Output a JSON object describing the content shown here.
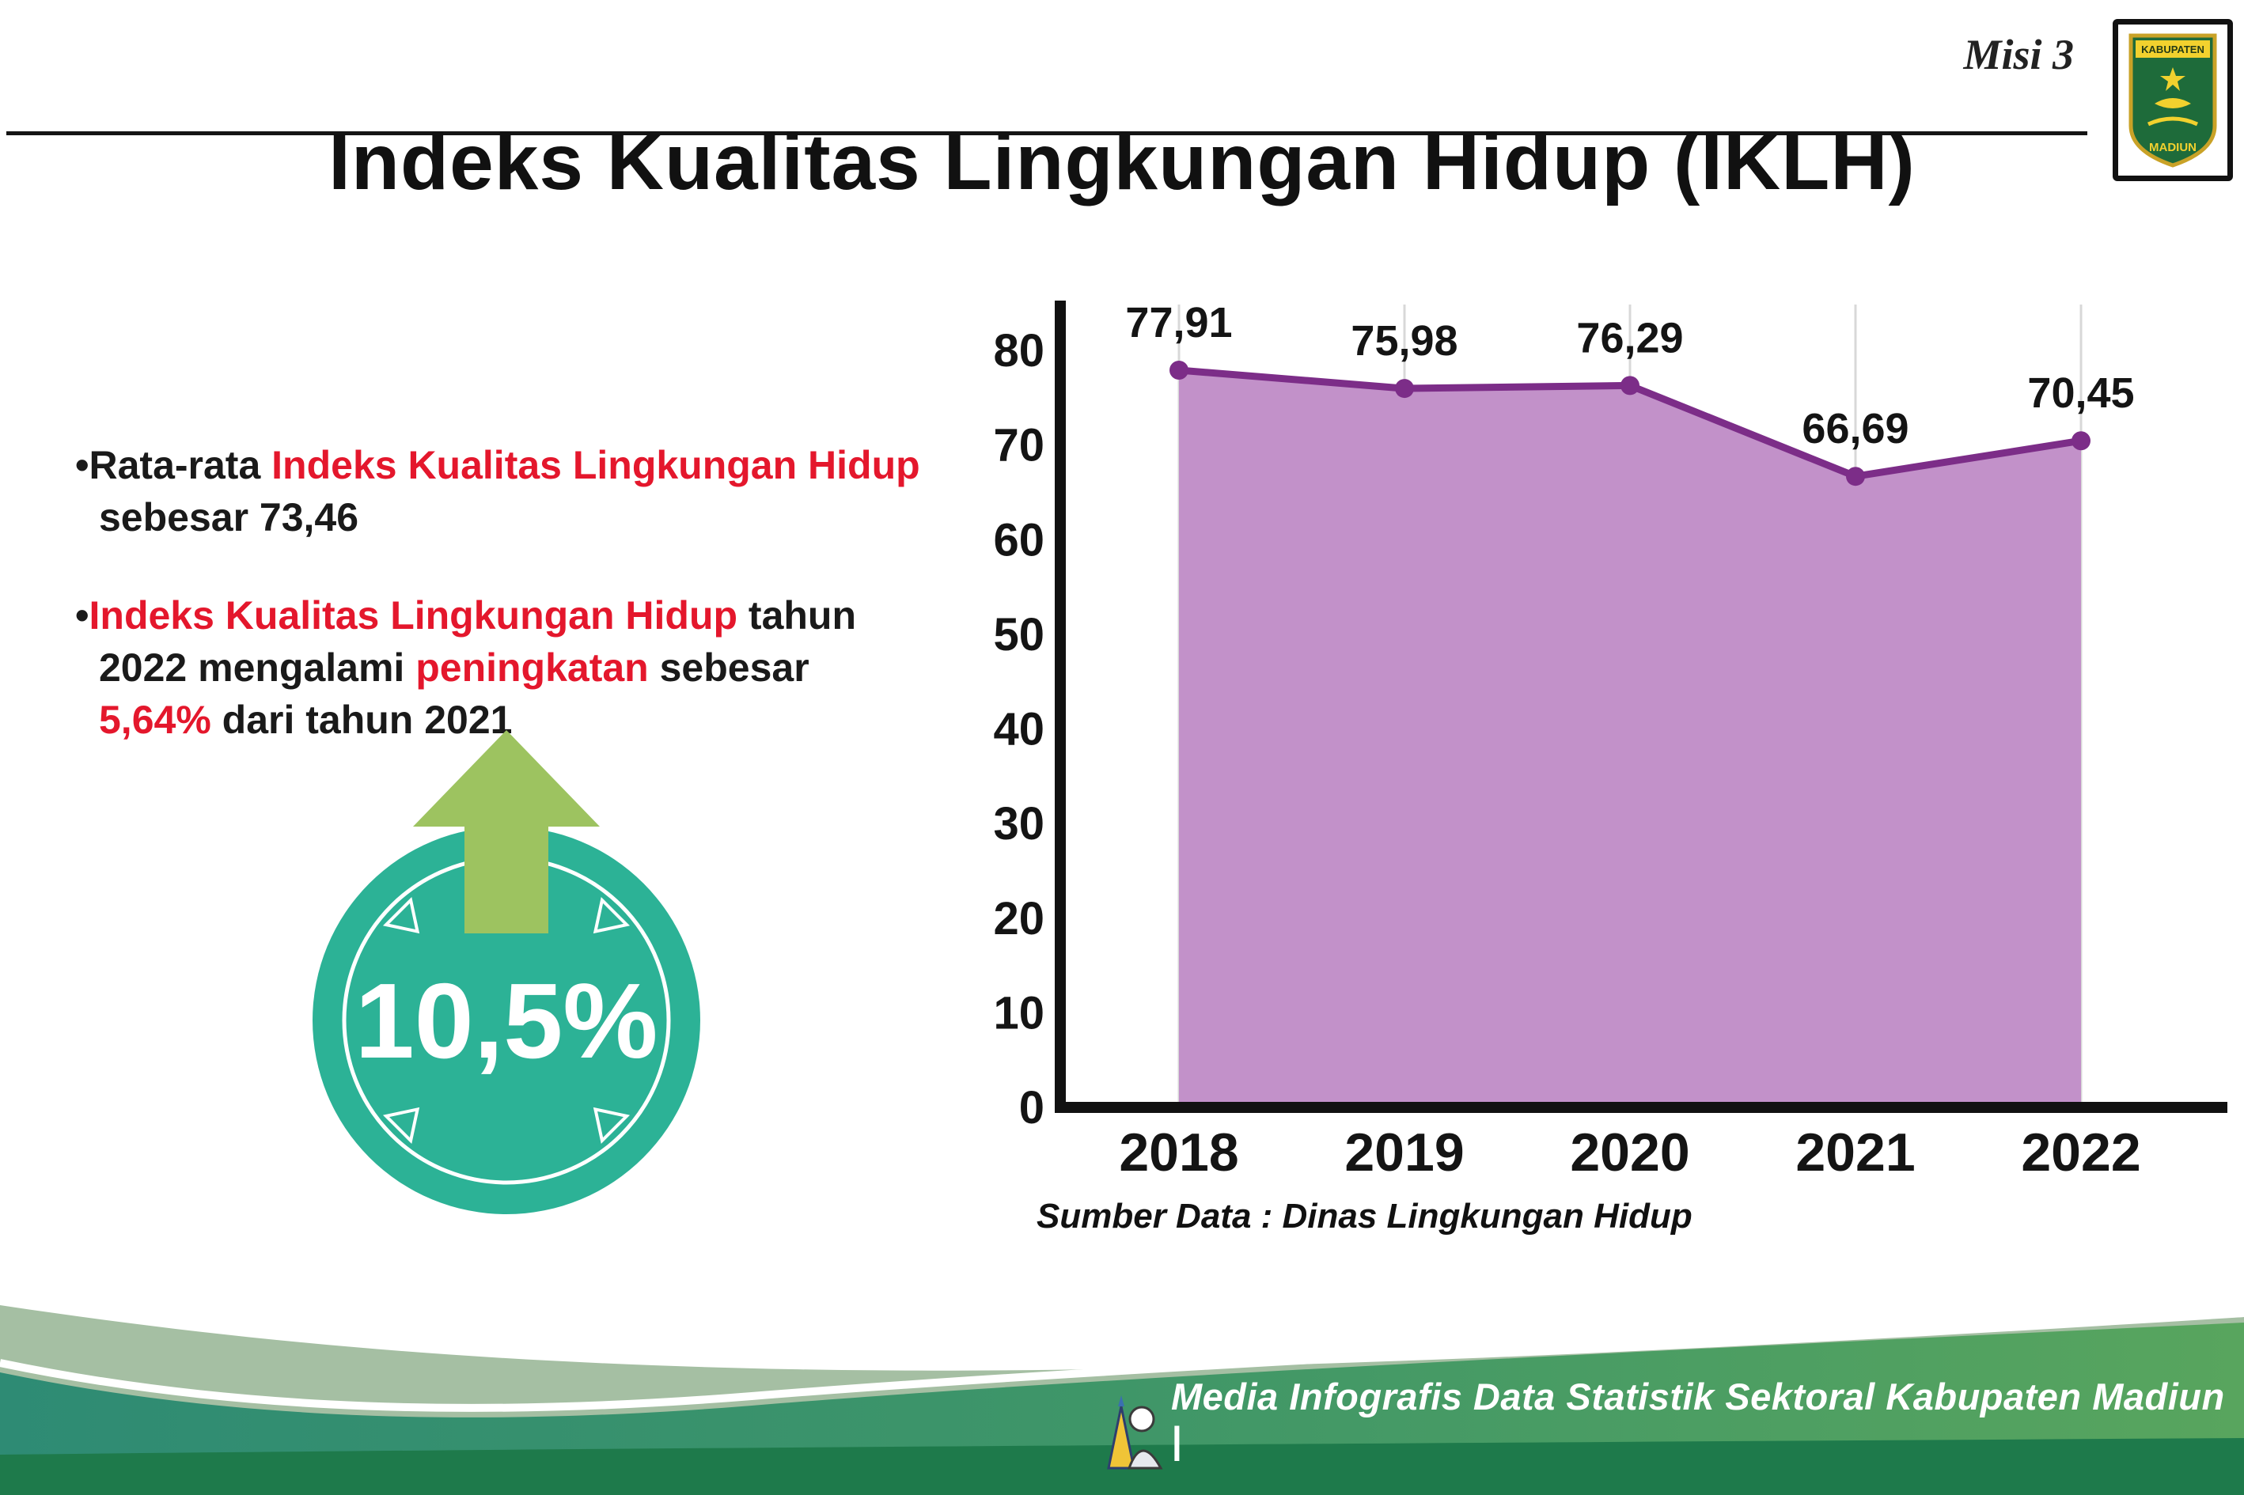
{
  "page": {
    "misi_label": "Misi 3",
    "title": "Indeks Kualitas Lingkungan Hidup (IKLH)"
  },
  "logo": {
    "top_text": "KABUPATEN",
    "bottom_text": "MADIUN"
  },
  "bullet_list": {
    "marker": "•",
    "items": [
      {
        "segments": [
          {
            "text": "Rata-rata ",
            "red": false
          },
          {
            "text": "Indeks Kualitas Lingkungan Hidup",
            "red": true
          },
          {
            "text": " sebesar 73,46",
            "red": false
          }
        ]
      },
      {
        "segments": [
          {
            "text": "Indeks Kualitas Lingkungan Hidup",
            "red": true
          },
          {
            "text": " tahun 2022 mengalami ",
            "red": false
          },
          {
            "text": "peningkatan",
            "red": true
          },
          {
            "text": " sebesar ",
            "red": false
          },
          {
            "text": "5,64%",
            "red": true
          },
          {
            "text": " dari tahun 2021",
            "red": false
          }
        ]
      }
    ]
  },
  "badge": {
    "value": "10,5%"
  },
  "chart_data": {
    "type": "area",
    "title": "Indeks Kualitas Lingkungan Hidup (IKLH)",
    "categories": [
      "2018",
      "2019",
      "2020",
      "2021",
      "2022"
    ],
    "values": [
      77.91,
      75.98,
      76.29,
      66.69,
      70.45
    ],
    "value_labels": [
      "77,91",
      "75,98",
      "76,29",
      "66,69",
      "70,45"
    ],
    "xlabel": "",
    "ylabel": "",
    "ylim": [
      0,
      80
    ],
    "ytick_step": 10,
    "grid": "vertical",
    "legend": "none",
    "fill_color": "#c291c9",
    "line_color": "#7c2d88",
    "source": "Sumber Data : Dinas Lingkungan Hidup"
  },
  "footer": {
    "text": "Media Infografis Data Statistik Sektoral Kabupaten Madiun |"
  },
  "colors": {
    "accent_red": "#e4172c",
    "badge_teal": "#2cb296",
    "arrow_green": "#9dc360",
    "footer_dark_green": "#1e7a4b"
  }
}
